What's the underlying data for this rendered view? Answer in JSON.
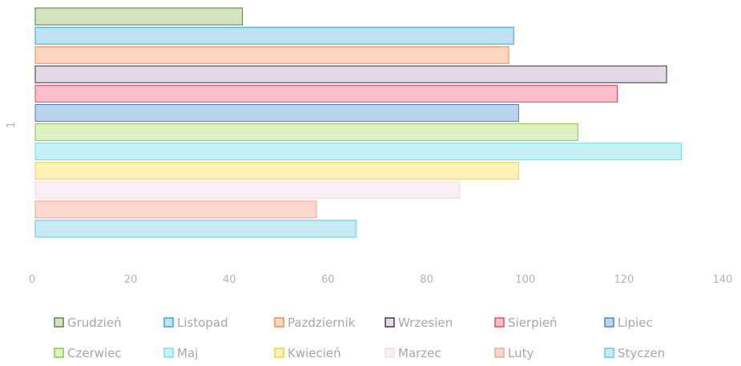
{
  "chart_data": {
    "type": "bar",
    "orientation": "horizontal",
    "title": "",
    "xlabel": "",
    "ylabel": "",
    "categories": [
      "1"
    ],
    "xlim": [
      0,
      140
    ],
    "x_ticks": [
      "0",
      "20",
      "40",
      "60",
      "80",
      "100",
      "120",
      "140"
    ],
    "grid": false,
    "legend_position": "bottom",
    "series": [
      {
        "name": "Grudzień",
        "value": 42,
        "color": "#d4e4c0",
        "border": "#5a7a3a"
      },
      {
        "name": "Listopad",
        "value": 97,
        "color": "#bfe3f5",
        "border": "#2aa0dc"
      },
      {
        "name": "Pazdziernik",
        "value": 96,
        "color": "#fcd6bf",
        "border": "#ea8c4a"
      },
      {
        "name": "Wrzesien",
        "value": 128,
        "color": "#e2d8e8",
        "border": "#3a2f3c"
      },
      {
        "name": "Sierpień",
        "value": 118,
        "color": "#f9c0c9",
        "border": "#e0475d"
      },
      {
        "name": "Lipiec",
        "value": 98,
        "color": "#b9d3ef",
        "border": "#4a80c8"
      },
      {
        "name": "Czerwiec",
        "value": 110,
        "color": "#dff2c2",
        "border": "#86c04a"
      },
      {
        "name": "Maj",
        "value": 131,
        "color": "#c4f1f8",
        "border": "#7fd6ec"
      },
      {
        "name": "Kwiecień",
        "value": 98,
        "color": "#fdf1b5",
        "border": "#f3cc40"
      },
      {
        "name": "Marzec",
        "value": 86,
        "color": "#fbeef3",
        "border": "#f0dbe4"
      },
      {
        "name": "Luty",
        "value": 57,
        "color": "#fcd9cc",
        "border": "#f2a48a"
      },
      {
        "name": "Styczen",
        "value": 65,
        "color": "#c7eaf5",
        "border": "#5fc7e4"
      }
    ]
  }
}
